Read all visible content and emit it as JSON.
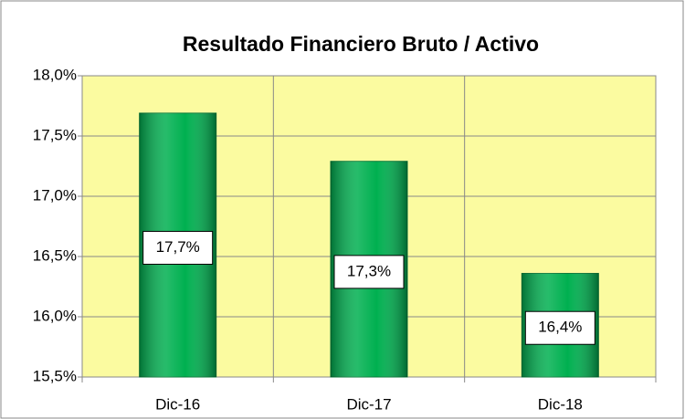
{
  "chart_data": {
    "type": "bar",
    "title": "Resultado Financiero Bruto / Activo",
    "categories": [
      "Dic-16",
      "Dic-17",
      "Dic-18"
    ],
    "values": [
      17.69,
      17.29,
      16.36
    ],
    "value_labels": [
      "17,7%",
      "17,3%",
      "16,4%"
    ],
    "color": "#00b050",
    "ylim": [
      15.5,
      18
    ],
    "yticks": [
      {
        "value": 15.5,
        "label": "15,5%"
      },
      {
        "value": 16,
        "label": "16,0%"
      },
      {
        "value": 16.5,
        "label": "16,5%"
      },
      {
        "value": 17,
        "label": "17,0%"
      },
      {
        "value": 17.5,
        "label": "17,5%"
      },
      {
        "value": 18,
        "label": "18,0%"
      }
    ],
    "grid": true
  }
}
